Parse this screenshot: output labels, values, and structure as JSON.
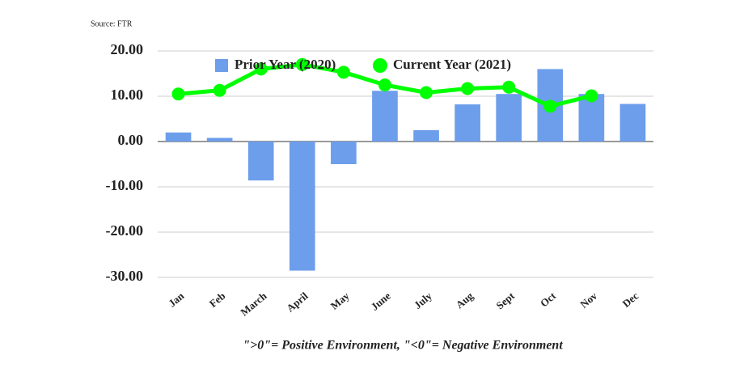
{
  "chart_data": {
    "type": "combo",
    "source": "Source: FTR",
    "footnote": "\">0\"= Positive Environment, \"<0\"= Negative Environment",
    "categories": [
      "Jan",
      "Feb",
      "March",
      "April",
      "May",
      "June",
      "July",
      "Aug",
      "Sept",
      "Oct",
      "Nov",
      "Dec"
    ],
    "series": [
      {
        "name": "Prior Year (2020)",
        "type": "bar",
        "color": "#6d9eeb",
        "values": [
          2.0,
          0.8,
          -8.6,
          -28.5,
          -5.0,
          11.2,
          2.5,
          8.2,
          10.5,
          16.0,
          10.5,
          8.3
        ]
      },
      {
        "name": "Current Year (2021)",
        "type": "line",
        "color": "#00ff00",
        "values": [
          10.5,
          11.3,
          16.0,
          17.0,
          15.3,
          12.5,
          10.8,
          11.7,
          12.0,
          7.8,
          10.1,
          null
        ]
      }
    ],
    "ylim": [
      -30,
      20
    ],
    "yticks": [
      {
        "value": -30,
        "label": "-30.00"
      },
      {
        "value": -20,
        "label": "-20.00"
      },
      {
        "value": -10,
        "label": "-10.00"
      },
      {
        "value": 0,
        "label": "0.00"
      },
      {
        "value": 10,
        "label": "10.00"
      },
      {
        "value": 20,
        "label": "20.00"
      }
    ],
    "grid": true,
    "legend": "top"
  }
}
